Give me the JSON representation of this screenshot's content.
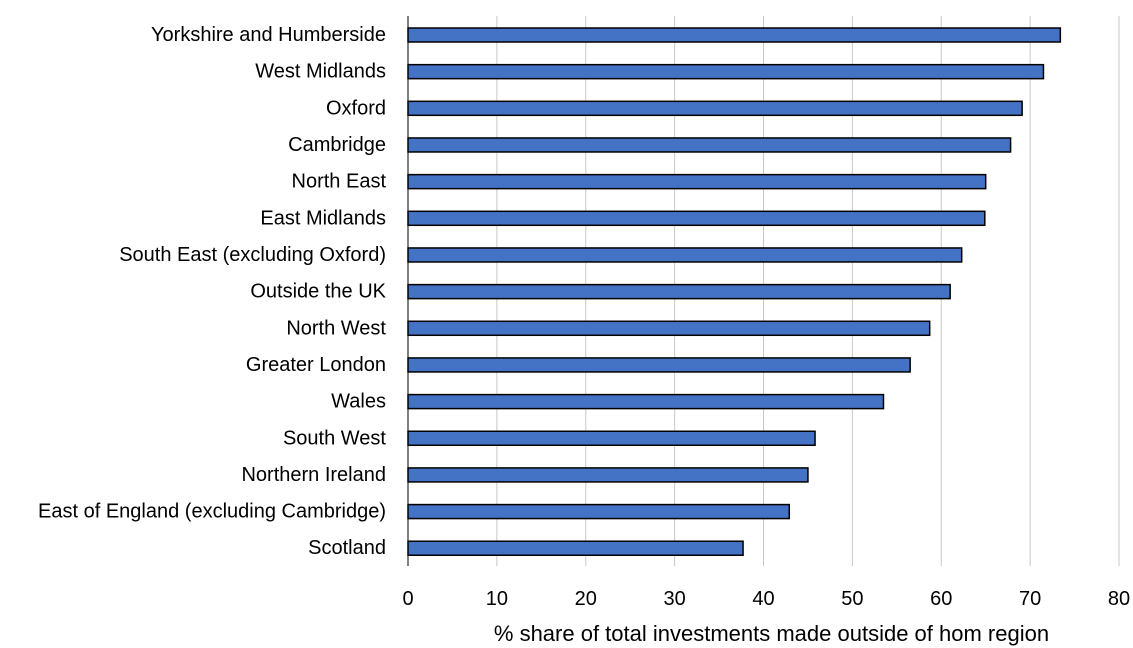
{
  "chart_data": {
    "type": "bar",
    "orientation": "horizontal",
    "categories": [
      "Yorkshire and Humberside",
      "West Midlands",
      "Oxford",
      "Cambridge",
      "North East",
      "East Midlands",
      "South East (excluding Oxford)",
      "Outside the UK",
      "North West",
      "Greater London",
      "Wales",
      "South West",
      "Northern Ireland",
      "East of England (excluding Cambridge)",
      "Scotland"
    ],
    "values": [
      73.4,
      71.5,
      69.1,
      67.8,
      65.0,
      64.9,
      62.3,
      61.0,
      58.7,
      56.5,
      53.5,
      45.8,
      45.0,
      42.9,
      37.7
    ],
    "xlabel": "% share of total investments made outside of hom region",
    "ylabel": "",
    "xlim": [
      0,
      80
    ],
    "xticks": [
      "0",
      "10",
      "20",
      "30",
      "40",
      "50",
      "60",
      "70",
      "80"
    ],
    "grid": "vertical",
    "bar_color": "#4472c4",
    "bar_outline_color": "#000000",
    "grid_color": "#c8c8c8"
  }
}
